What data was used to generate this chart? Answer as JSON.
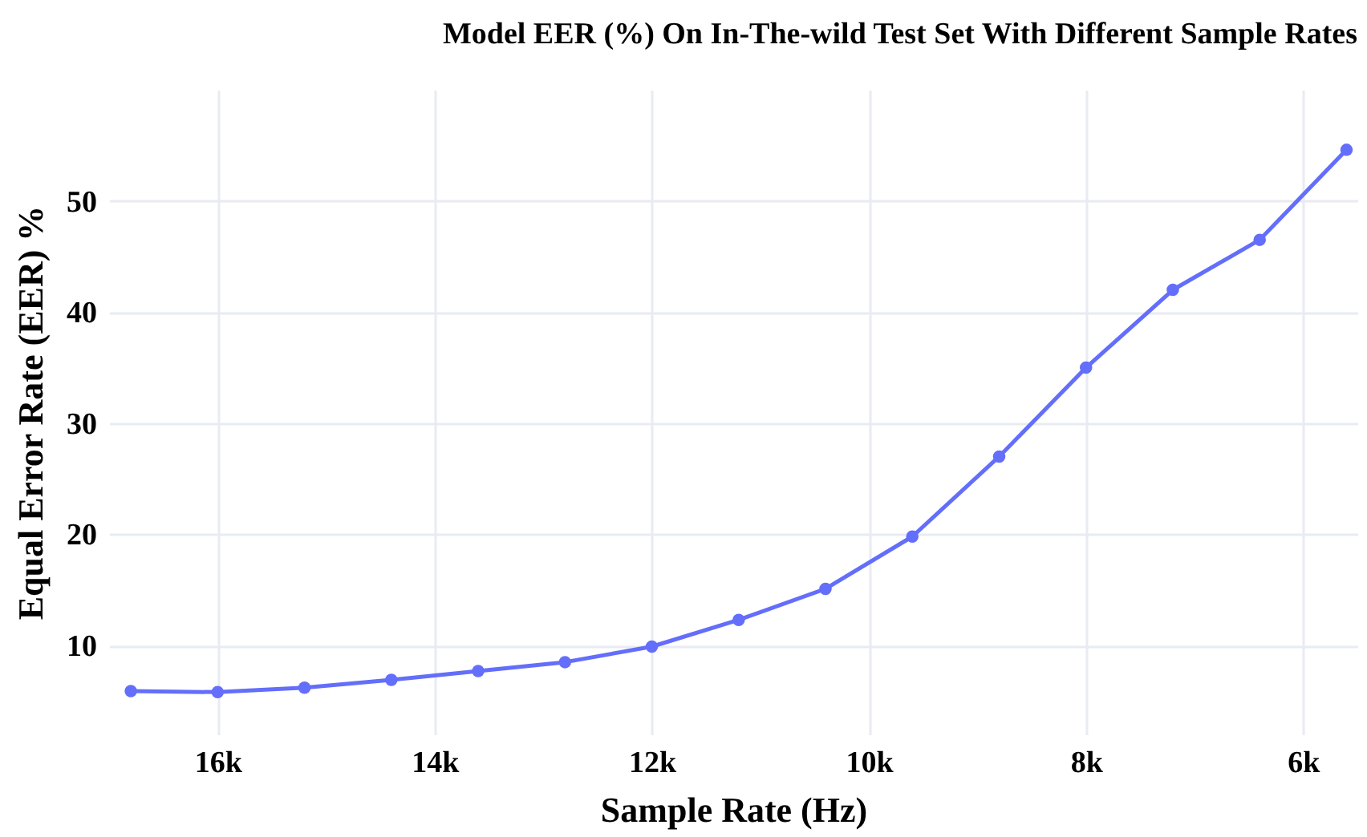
{
  "chart_data": {
    "type": "line",
    "title": "Model EER (%) On In-The-wild Test Set With Different Sample Rates",
    "xlabel": "Sample Rate (Hz)",
    "ylabel": "Equal Error Rate (EER) %",
    "x": [
      16800,
      16000,
      15200,
      14400,
      13600,
      12800,
      12000,
      11200,
      10400,
      9600,
      8800,
      8000,
      7200,
      6400,
      5600
    ],
    "series": [
      {
        "color": "#636efa",
        "values": [
          5.9,
          5.8,
          6.2,
          6.9,
          7.7,
          8.5,
          9.9,
          12.3,
          15.1,
          19.8,
          27.0,
          35.0,
          42.0,
          46.5,
          54.6
        ]
      }
    ],
    "xlim": [
      17000,
      5500
    ],
    "xticks": [
      {
        "value": 16000,
        "label": "16k"
      },
      {
        "value": 14000,
        "label": "14k"
      },
      {
        "value": 12000,
        "label": "12k"
      },
      {
        "value": 10000,
        "label": "10k"
      },
      {
        "value": 8000,
        "label": "8k"
      },
      {
        "value": 6000,
        "label": "6k"
      }
    ],
    "ylim": [
      2,
      60
    ],
    "yticks": [
      10,
      20,
      30,
      40,
      50
    ],
    "grid": true,
    "marker": "circle",
    "line_style": "solid"
  }
}
